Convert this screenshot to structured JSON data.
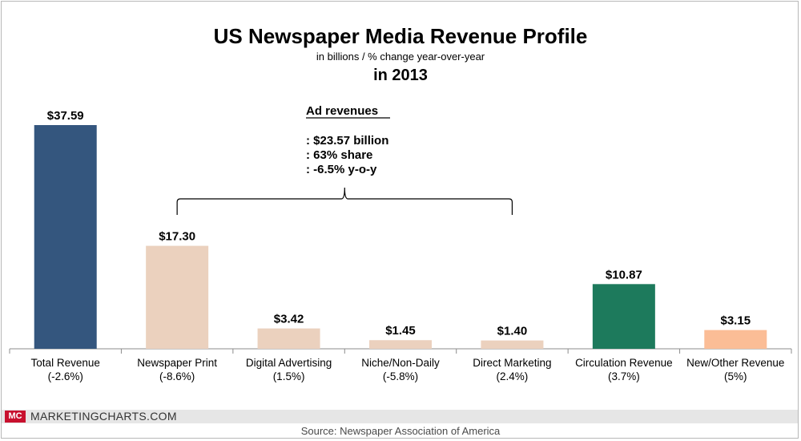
{
  "chart_data": {
    "type": "bar",
    "title": "US Newspaper Media Revenue Profile",
    "subtitle": "in billions / % change year-over-year",
    "period": "in 2013",
    "categories": [
      {
        "name": "Total Revenue",
        "change": "(-2.6%)"
      },
      {
        "name": "Newspaper Print",
        "change": "(-8.6%)"
      },
      {
        "name": "Digital Advertising",
        "change": "(1.5%)"
      },
      {
        "name": "Niche/Non-Daily",
        "change": "(-5.8%)"
      },
      {
        "name": "Direct Marketing",
        "change": "(2.4%)"
      },
      {
        "name": "Circulation Revenue",
        "change": "(3.7%)"
      },
      {
        "name": "New/Other Revenue",
        "change": "(5%)"
      }
    ],
    "values": [
      37.59,
      17.3,
      3.42,
      1.45,
      1.4,
      10.87,
      3.15
    ],
    "value_labels": [
      "$37.59",
      "$17.30",
      "$3.42",
      "$1.45",
      "$1.40",
      "$10.87",
      "$3.15"
    ],
    "colors": [
      "#34567e",
      "#ebd1be",
      "#ebd1be",
      "#ebd1be",
      "#ebd1be",
      "#1d7a5c",
      "#fbbd96"
    ],
    "ylim": [
      0,
      37.59
    ],
    "annotation": {
      "title": "Ad revenues",
      "lines": [
        ": $23.57 billion",
        ": 63% share",
        ": -6.5% y-o-y"
      ],
      "spans_categories": [
        1,
        4
      ]
    }
  },
  "footer": {
    "brand_badge": "MC",
    "brand": "MARKETINGCHARTS.COM",
    "source": "Source: Newspaper Association of America"
  }
}
